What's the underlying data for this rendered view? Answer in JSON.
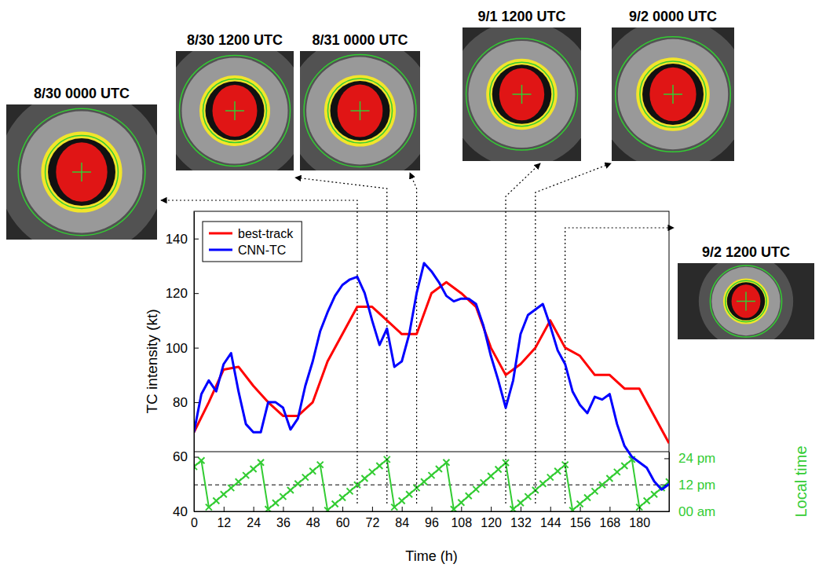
{
  "chart_data": [
    {
      "type": "line",
      "xlabel": "Time (h)",
      "ylabel": "TC intensity (kt)",
      "xlim": [
        0,
        192
      ],
      "xticks": [
        0,
        12,
        24,
        36,
        48,
        60,
        72,
        84,
        96,
        108,
        120,
        132,
        144,
        156,
        168,
        180
      ],
      "ylim": [
        40,
        150
      ],
      "yticks": [
        40,
        60,
        80,
        100,
        120,
        140
      ],
      "grid": false,
      "legend": "upper left",
      "series": [
        {
          "name": "best-track",
          "color": "#ff0000",
          "x": [
            0,
            6,
            12,
            18,
            24,
            30,
            36,
            42,
            48,
            54,
            60,
            66,
            72,
            78,
            84,
            90,
            96,
            102,
            108,
            114,
            120,
            126,
            132,
            138,
            144,
            150,
            156,
            162,
            168,
            174,
            180,
            186,
            192
          ],
          "values": [
            69,
            80,
            92,
            93,
            86,
            80,
            75,
            75,
            80,
            95,
            105,
            115,
            115,
            110,
            105,
            105,
            120,
            124,
            120,
            115,
            100,
            90,
            94,
            100,
            110,
            100,
            97,
            90,
            90,
            85,
            85,
            75,
            65
          ]
        },
        {
          "name": "CNN-TC",
          "color": "#0000ff",
          "x": [
            0,
            3,
            6,
            9,
            12,
            15,
            18,
            21,
            24,
            27,
            30,
            33,
            36,
            39,
            42,
            45,
            48,
            51,
            54,
            57,
            60,
            63,
            66,
            69,
            72,
            75,
            78,
            81,
            84,
            87,
            90,
            93,
            96,
            99,
            102,
            105,
            108,
            111,
            114,
            117,
            120,
            123,
            126,
            129,
            132,
            135,
            138,
            141,
            144,
            147,
            150,
            153,
            156,
            159,
            162,
            165,
            168,
            171,
            174,
            177,
            180,
            183,
            186,
            189,
            192
          ],
          "values": [
            69,
            83,
            88,
            84,
            94,
            98,
            84,
            72,
            69,
            69,
            80,
            80,
            78,
            70,
            74,
            86,
            95,
            106,
            113,
            119,
            123,
            125,
            126,
            120,
            110,
            101,
            107,
            93,
            95,
            105,
            120,
            131,
            128,
            124,
            119,
            117,
            118,
            118,
            116,
            108,
            97,
            88,
            78,
            88,
            105,
            112,
            114,
            116,
            108,
            99,
            94,
            84,
            79,
            76,
            82,
            81,
            83,
            72,
            64,
            60,
            58,
            56,
            51,
            48,
            50
          ]
        }
      ],
      "annotations": [
        {
          "text": "8/30 0000 UTC",
          "x": 66
        },
        {
          "text": "8/30 1200 UTC",
          "x": 78
        },
        {
          "text": "8/31 0000 UTC",
          "x": 90
        },
        {
          "text": "9/1 1200 UTC",
          "x": 126
        },
        {
          "text": "9/2 0000 UTC",
          "x": 138
        },
        {
          "text": "9/2 1200 UTC",
          "x": 150
        }
      ]
    },
    {
      "type": "line",
      "ylabel": "Local time",
      "xlim": [
        0,
        192
      ],
      "ylim": [
        0,
        27
      ],
      "yticks": [
        {
          "value": 0,
          "label": "00 am"
        },
        {
          "value": 12,
          "label": "12 pm"
        },
        {
          "value": 24,
          "label": "24 pm"
        }
      ],
      "tick_labels": "y",
      "reference_line": 12,
      "x": [
        0,
        3,
        6,
        9,
        12,
        15,
        18,
        21,
        24,
        27,
        30,
        33,
        36,
        39,
        42,
        45,
        48,
        51,
        54,
        57,
        60,
        63,
        66,
        69,
        72,
        75,
        78,
        81,
        84,
        87,
        90,
        93,
        96,
        99,
        102,
        105,
        108,
        111,
        114,
        117,
        120,
        123,
        126,
        129,
        132,
        135,
        138,
        141,
        144,
        147,
        150,
        153,
        156,
        159,
        162,
        165,
        168,
        171,
        174,
        177,
        180,
        183,
        186,
        189,
        192
      ],
      "series": [
        {
          "color": "#33cc33",
          "marker": "x",
          "values": [
            20.2,
            23.0,
            1.9,
            4.8,
            7.7,
            10.6,
            13.4,
            16.3,
            19.2,
            22.1,
            1.0,
            3.8,
            6.7,
            9.6,
            12.5,
            15.4,
            18.2,
            21.1,
            0.5,
            3.4,
            6.2,
            9.1,
            12.0,
            14.9,
            17.8,
            20.6,
            23.5,
            1.9,
            4.8,
            7.7,
            10.6,
            13.4,
            16.3,
            19.2,
            22.1,
            1.0,
            4.0,
            7.0,
            10.0,
            13.0,
            16.0,
            19.0,
            22.0,
            1.0,
            3.8,
            6.7,
            9.6,
            12.5,
            15.4,
            18.2,
            21.1,
            0.5,
            3.4,
            6.2,
            9.1,
            12.0,
            14.9,
            17.8,
            20.6,
            23.5,
            1.9,
            4.8,
            7.7,
            10.6,
            13.4
          ]
        }
      ]
    }
  ]
}
